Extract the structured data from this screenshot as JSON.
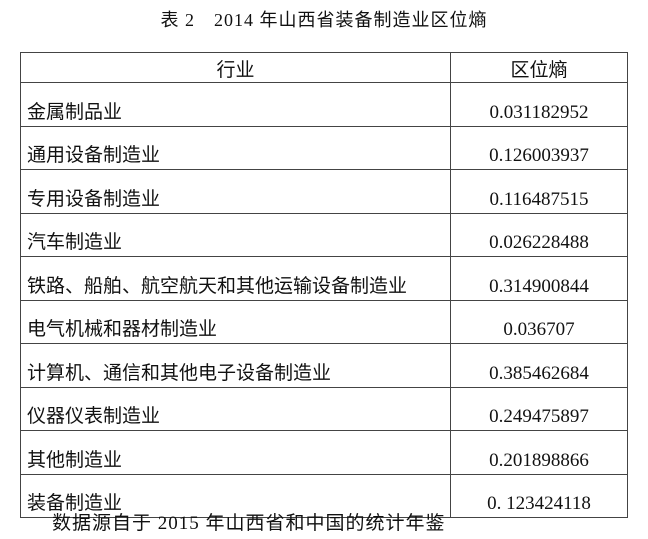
{
  "caption": "表 2　2014 年山西省装备制造业区位熵",
  "table": {
    "headers": [
      "行业",
      "区位熵"
    ],
    "rows": [
      {
        "industry": "金属制品业",
        "value": "0.031182952"
      },
      {
        "industry": "通用设备制造业",
        "value": "0.126003937"
      },
      {
        "industry": "专用设备制造业",
        "value": "0.116487515"
      },
      {
        "industry": "汽车制造业",
        "value": "0.026228488"
      },
      {
        "industry": "铁路、船舶、航空航天和其他运输设备制造业",
        "value": "0.314900844"
      },
      {
        "industry": "电气机械和器材制造业",
        "value": "0.036707"
      },
      {
        "industry": "计算机、通信和其他电子设备制造业",
        "value": "0.385462684"
      },
      {
        "industry": "仪器仪表制造业",
        "value": "0.249475897"
      },
      {
        "industry": "其他制造业",
        "value": "0.201898866"
      },
      {
        "industry": "装备制造业",
        "value": "0. 123424118"
      }
    ]
  },
  "note": "数据源自于 2015 年山西省和中国的统计年鉴"
}
